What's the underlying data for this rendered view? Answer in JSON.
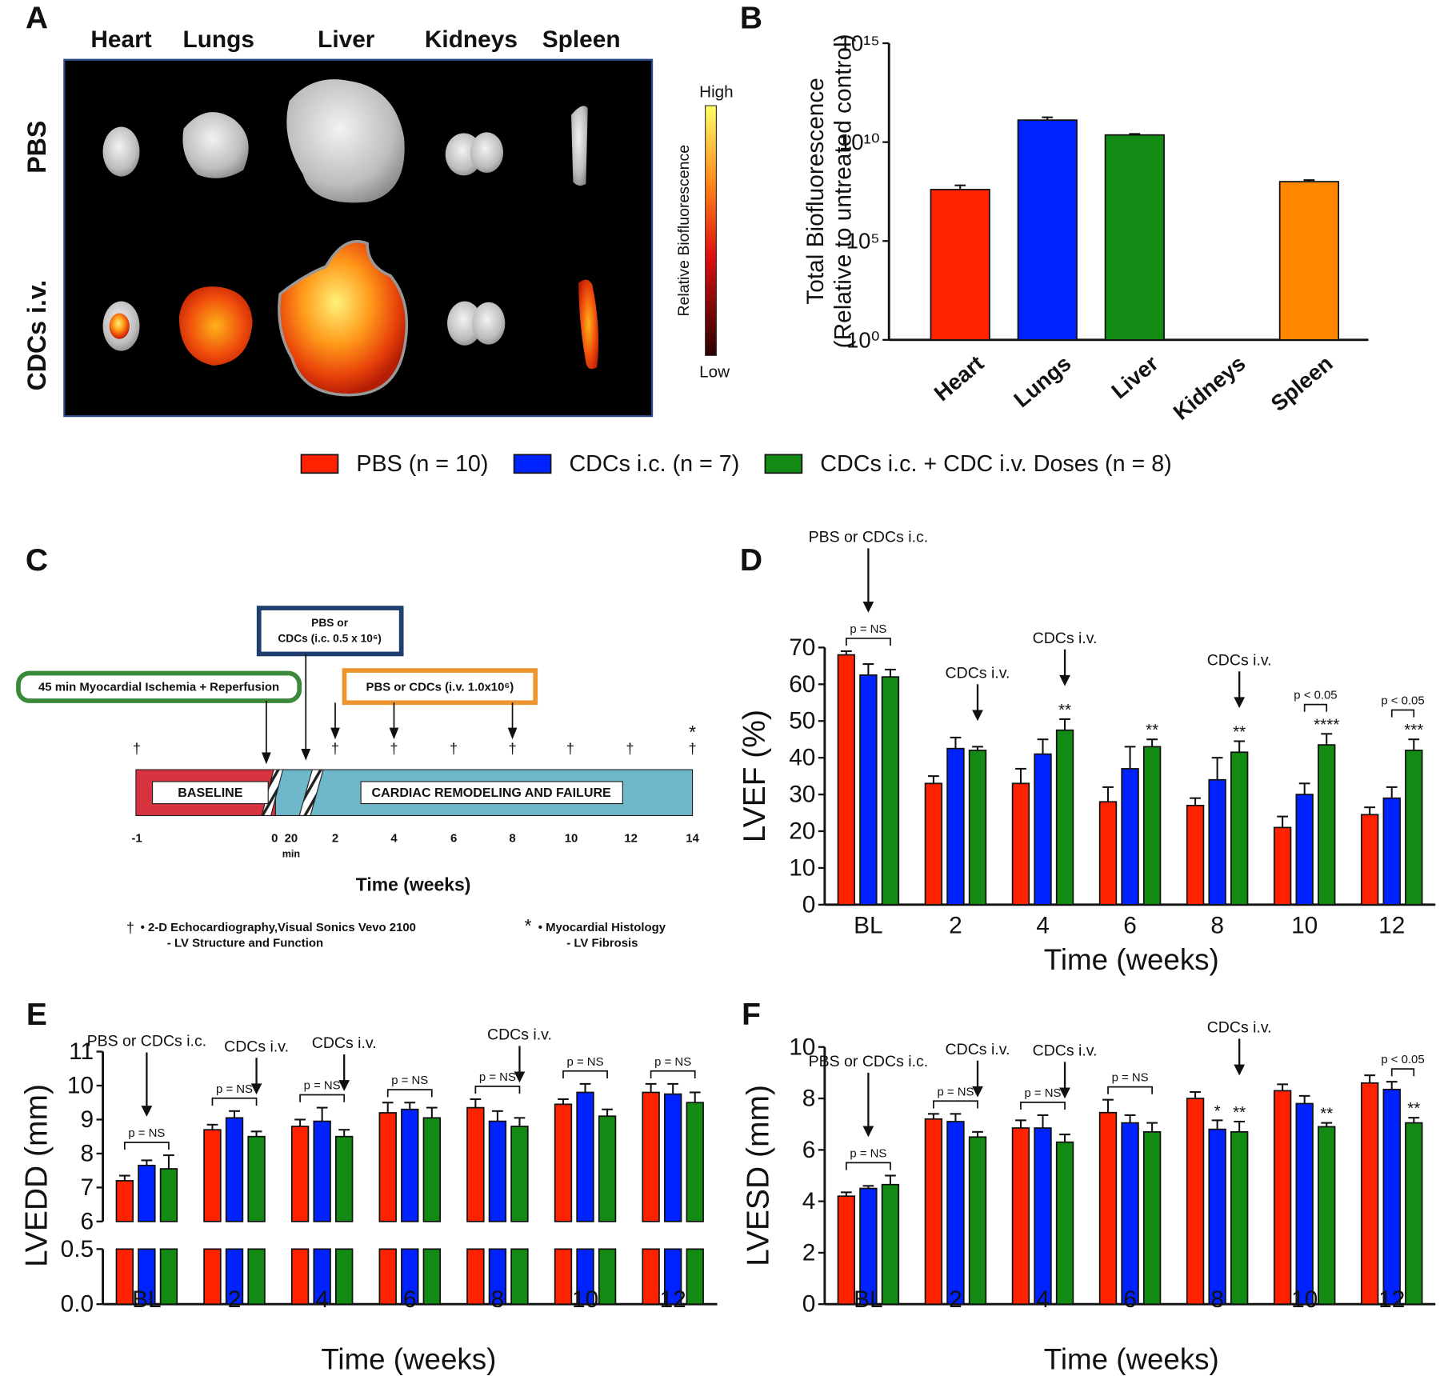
{
  "panel_labels": [
    "A",
    "B",
    "C",
    "D",
    "E",
    "F"
  ],
  "panel_a": {
    "columns": [
      "Heart",
      "Lungs",
      "Liver",
      "Kidneys",
      "Spleen"
    ],
    "rows": [
      "PBS",
      "CDCs i.v."
    ],
    "colorbar": {
      "label": "Relative Biofluorescence",
      "high": "High",
      "low": "Low"
    }
  },
  "panel_c": {
    "box_ic": [
      "PBS or",
      "CDCs (i.c. 0.5 x 10⁶)"
    ],
    "box_ischemia": "45 min Myocardial Ischemia + Reperfusion",
    "box_iv": "PBS or CDCs (i.v. 1.0x10⁶)",
    "baseline": "BASELINE",
    "remodeling": "CARDIAC REMODELING AND FAILURE",
    "ticks": [
      "-1",
      "0",
      "20",
      "2",
      "4",
      "6",
      "8",
      "10",
      "12",
      "14"
    ],
    "min": "min",
    "xlabel": "Time (weeks)",
    "dagger": "†",
    "star": "*",
    "note_echo": [
      "• 2-D Echocardiography,Visual Sonics Vevo 2100",
      "- LV Structure and Function"
    ],
    "note_histology": [
      "• Myocardial Histology",
      "- LV Fibrosis"
    ]
  },
  "chart_data": [
    {
      "type": "bar",
      "log_scale": true,
      "ylabel": [
        "Total Biofluorescence",
        "(Relative to untreated control)"
      ],
      "categories": [
        "Heart",
        "Lungs",
        "Liver",
        "Kidneys",
        "Spleen"
      ],
      "values": [
        40000000,
        130000000000,
        23000000000,
        null,
        100000000
      ],
      "errors": [
        25000000,
        50000000000,
        3000000000,
        null,
        20000000
      ],
      "colors": [
        "#ff2200",
        "#0022ff",
        "#138a13",
        null,
        "#ff8800"
      ],
      "ylim": [
        1,
        1000000000000000.0
      ],
      "yticks": [
        {
          "value": 1,
          "label": "10⁰"
        },
        {
          "value": 100000,
          "label": "10⁵"
        },
        {
          "value": 10000000000,
          "label": "10¹⁰"
        },
        {
          "value": 1000000000000000.0,
          "label": "10¹⁵"
        }
      ]
    },
    {
      "type": "grouped_bar",
      "ylabel": "LVEF (%)",
      "xlabel": "Time (weeks)",
      "categories": [
        "BL",
        "2",
        "4",
        "6",
        "8",
        "10",
        "12"
      ],
      "series": [
        {
          "name": "PBS (n = 10)",
          "color": "#ff2200",
          "values": [
            68,
            33,
            33,
            28,
            27,
            21,
            24.5
          ],
          "errors": [
            1,
            2,
            4,
            4,
            2,
            3,
            2
          ]
        },
        {
          "name": "CDCs i.c. (n = 7)",
          "color": "#0022ff",
          "values": [
            62.5,
            42.5,
            41,
            37,
            34,
            30,
            29
          ],
          "errors": [
            3,
            3,
            4,
            6,
            6,
            3,
            3
          ]
        },
        {
          "name": "CDCs i.c. + CDC i.v. Doses (n = 8)",
          "color": "#138a13",
          "values": [
            62,
            42,
            47.5,
            43,
            41.5,
            43.5,
            42
          ],
          "errors": [
            2,
            1,
            3,
            2,
            3,
            3,
            3
          ],
          "stars": [
            null,
            null,
            "**",
            "**",
            "**",
            "****",
            "***"
          ]
        }
      ],
      "ylim": [
        0,
        70
      ],
      "yticks": [
        0,
        10,
        20,
        30,
        40,
        50,
        60,
        70
      ],
      "annotations": [
        {
          "text": "PBS or CDCs i.c.",
          "category": "BL"
        },
        {
          "text": "CDCs i.v.",
          "category": "2"
        },
        {
          "text": "CDCs i.v.",
          "category": "4"
        },
        {
          "text": "CDCs i.v.",
          "category": "8"
        }
      ],
      "brackets": [
        {
          "label": "p = NS",
          "category": "BL",
          "series": [
            0,
            2
          ]
        },
        {
          "label": "p < 0.05",
          "category": "10",
          "series": [
            1,
            2
          ]
        },
        {
          "label": "p < 0.05",
          "category": "12",
          "series": [
            1,
            2
          ]
        }
      ]
    },
    {
      "type": "grouped_bar",
      "ylabel": "LVEDD (mm)",
      "xlabel": "Time (weeks)",
      "categories": [
        "BL",
        "2",
        "4",
        "6",
        "8",
        "10",
        "12"
      ],
      "series": [
        {
          "color": "#ff2200",
          "values": [
            7.2,
            8.7,
            8.8,
            9.2,
            9.35,
            9.45,
            9.8
          ],
          "errors": [
            0.15,
            0.15,
            0.2,
            0.3,
            0.25,
            0.15,
            0.25
          ]
        },
        {
          "color": "#0022ff",
          "values": [
            7.65,
            9.05,
            8.95,
            9.3,
            8.95,
            9.8,
            9.75
          ],
          "errors": [
            0.15,
            0.2,
            0.4,
            0.2,
            0.3,
            0.25,
            0.3
          ]
        },
        {
          "color": "#138a13",
          "values": [
            7.55,
            8.5,
            8.5,
            9.05,
            8.8,
            9.1,
            9.5
          ],
          "errors": [
            0.4,
            0.15,
            0.2,
            0.3,
            0.25,
            0.2,
            0.3
          ]
        }
      ],
      "ylim": [
        0,
        11
      ],
      "axis_break": [
        0.5,
        6
      ],
      "yticks": [
        {
          "value": 0,
          "label": "0.0"
        },
        0.5,
        6,
        7,
        8,
        9,
        10,
        11
      ],
      "annotations": [
        {
          "text": "PBS or CDCs i.c.",
          "category": "BL"
        },
        {
          "text": "CDCs i.v.",
          "category": "2"
        },
        {
          "text": "CDCs i.v.",
          "category": "4"
        },
        {
          "text": "CDCs i.v.",
          "category": "8"
        }
      ],
      "brackets": [
        {
          "label": "p = NS",
          "category": "BL",
          "series": [
            0,
            2
          ]
        },
        {
          "label": "p = NS",
          "category": "2",
          "series": [
            0,
            2
          ]
        },
        {
          "label": "p = NS",
          "category": "4",
          "series": [
            0,
            2
          ]
        },
        {
          "label": "p = NS",
          "category": "6",
          "series": [
            0,
            2
          ]
        },
        {
          "label": "p = NS",
          "category": "8",
          "series": [
            0,
            2
          ]
        },
        {
          "label": "p = NS",
          "category": "10",
          "series": [
            0,
            2
          ]
        },
        {
          "label": "p = NS",
          "category": "12",
          "series": [
            0,
            2
          ]
        }
      ]
    },
    {
      "type": "grouped_bar",
      "ylabel": "LVESD (mm)",
      "xlabel": "Time (weeks)",
      "categories": [
        "BL",
        "2",
        "4",
        "6",
        "8",
        "10",
        "12"
      ],
      "series": [
        {
          "color": "#ff2200",
          "values": [
            4.2,
            7.2,
            6.85,
            7.45,
            8.0,
            8.3,
            8.6
          ],
          "errors": [
            0.15,
            0.2,
            0.3,
            0.5,
            0.25,
            0.25,
            0.3
          ]
        },
        {
          "color": "#0022ff",
          "values": [
            4.5,
            7.1,
            6.85,
            7.05,
            6.8,
            7.8,
            8.35
          ],
          "errors": [
            0.1,
            0.3,
            0.5,
            0.3,
            0.35,
            0.3,
            0.3
          ],
          "stars": [
            null,
            null,
            null,
            null,
            "*",
            null,
            null
          ]
        },
        {
          "color": "#138a13",
          "values": [
            4.65,
            6.5,
            6.3,
            6.7,
            6.7,
            6.9,
            7.05
          ],
          "errors": [
            0.35,
            0.2,
            0.3,
            0.35,
            0.4,
            0.15,
            0.2
          ],
          "stars": [
            null,
            null,
            null,
            null,
            "**",
            "**",
            "**"
          ]
        }
      ],
      "ylim": [
        0,
        10
      ],
      "yticks": [
        0,
        2,
        4,
        6,
        8,
        10
      ],
      "annotations": [
        {
          "text": "PBS or CDCs i.c.",
          "category": "BL"
        },
        {
          "text": "CDCs i.v.",
          "category": "2"
        },
        {
          "text": "CDCs i.v.",
          "category": "4"
        },
        {
          "text": "CDCs i.v.",
          "category": "8"
        }
      ],
      "brackets": [
        {
          "label": "p = NS",
          "category": "BL",
          "series": [
            0,
            2
          ]
        },
        {
          "label": "p = NS",
          "category": "2",
          "series": [
            0,
            2
          ]
        },
        {
          "label": "p = NS",
          "category": "4",
          "series": [
            0,
            2
          ]
        },
        {
          "label": "p = NS",
          "category": "6",
          "series": [
            0,
            2
          ]
        },
        {
          "label": "p < 0.05",
          "category": "12",
          "series": [
            1,
            2
          ]
        }
      ]
    }
  ]
}
